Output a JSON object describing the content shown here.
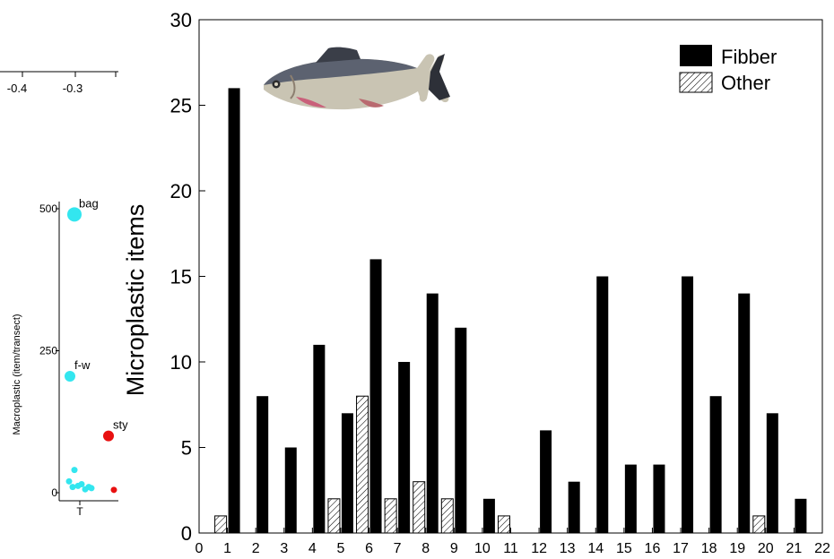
{
  "chart_data": [
    {
      "type": "bar",
      "title": "",
      "xlabel": "",
      "ylabel": "Microplastic items",
      "xlim": [
        0,
        22
      ],
      "ylim": [
        0,
        30
      ],
      "x_ticks": [
        "0",
        "1",
        "2",
        "3",
        "4",
        "5",
        "6",
        "7",
        "8",
        "9",
        "10",
        "11",
        "12",
        "13",
        "14",
        "15",
        "16",
        "17",
        "18",
        "19",
        "20",
        "21",
        "22"
      ],
      "y_ticks": [
        "0",
        "5",
        "10",
        "15",
        "20",
        "25",
        "30"
      ],
      "x": [
        1,
        2,
        3,
        4,
        5,
        6,
        7,
        8,
        9,
        10,
        11,
        12,
        13,
        14,
        15,
        16,
        17,
        18,
        19,
        20,
        21
      ],
      "series": [
        {
          "name": "Fibber",
          "color": "#000000",
          "pattern": "solid",
          "values": [
            26,
            8,
            5,
            11,
            7,
            16,
            10,
            14,
            12,
            2,
            0,
            6,
            3,
            15,
            4,
            4,
            15,
            8,
            14,
            7,
            2
          ]
        },
        {
          "name": "Other",
          "color": "#000000",
          "pattern": "hatched",
          "values": [
            1,
            0,
            0,
            0,
            2,
            8,
            2,
            3,
            2,
            0,
            1,
            0,
            0,
            0,
            0,
            0,
            0,
            0,
            0,
            1,
            0
          ]
        }
      ],
      "legend": "top-right",
      "grid": false,
      "image": "fish-photo"
    },
    {
      "type": "scatter",
      "title": "",
      "ylabel": "Macroplastic (item/transect)",
      "x_ticks": [
        "T"
      ],
      "y_ticks": [
        "0",
        "250",
        "500"
      ],
      "ylim": [
        0,
        520
      ],
      "points": [
        {
          "label": "bag",
          "y": 490,
          "color": "#33e6ef",
          "size": "large"
        },
        {
          "label": "f-w",
          "y": 205,
          "color": "#33e6ef",
          "size": "medium"
        },
        {
          "label": "sty",
          "y": 100,
          "color": "#e81010",
          "size": "medium"
        },
        {
          "label": "",
          "y": 40,
          "color": "#33e6ef",
          "size": "small"
        },
        {
          "label": "",
          "y": 20,
          "color": "#33e6ef",
          "size": "small"
        },
        {
          "label": "",
          "y": 15,
          "color": "#33e6ef",
          "size": "small"
        },
        {
          "label": "",
          "y": 10,
          "color": "#33e6ef",
          "size": "small"
        },
        {
          "label": "",
          "y": 12,
          "color": "#33e6ef",
          "size": "small"
        },
        {
          "label": "",
          "y": 8,
          "color": "#33e6ef",
          "size": "small"
        },
        {
          "label": "",
          "y": 6,
          "color": "#33e6ef",
          "size": "small"
        },
        {
          "label": "",
          "y": 10,
          "color": "#33e6ef",
          "size": "small"
        },
        {
          "label": "",
          "y": 5,
          "color": "#e81010",
          "size": "small"
        }
      ]
    },
    {
      "type": "axis-fragment",
      "tick_labels": [
        "-0.4",
        "-0.3"
      ]
    }
  ]
}
